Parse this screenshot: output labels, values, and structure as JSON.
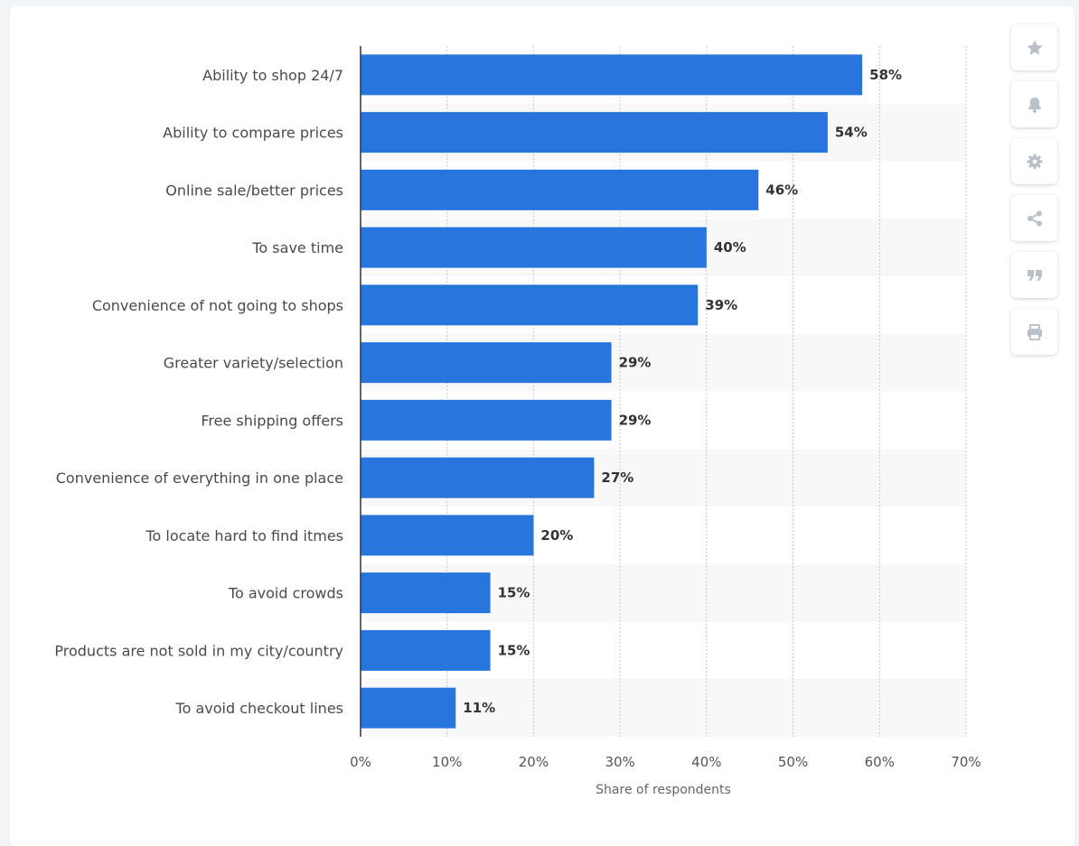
{
  "chart_data": {
    "type": "bar",
    "orientation": "horizontal",
    "categories": [
      "Ability to shop 24/7",
      "Ability to compare prices",
      "Online sale/better prices",
      "To save time",
      "Convenience of not going to shops",
      "Greater variety/selection",
      "Free shipping offers",
      "Convenience of everything in one place",
      "To locate hard to find itmes",
      "To avoid crowds",
      "Products are not sold in my city/country",
      "To avoid checkout lines"
    ],
    "values": [
      58,
      54,
      46,
      40,
      39,
      29,
      29,
      27,
      20,
      15,
      15,
      11
    ],
    "value_labels": [
      "58%",
      "54%",
      "46%",
      "40%",
      "39%",
      "29%",
      "29%",
      "27%",
      "20%",
      "15%",
      "15%",
      "11%"
    ],
    "xlabel": "Share of respondents",
    "ylabel": "",
    "xlim": [
      0,
      70
    ],
    "x_ticks": [
      "0%",
      "10%",
      "20%",
      "30%",
      "40%",
      "50%",
      "60%",
      "70%"
    ],
    "grid": true,
    "bar_color": "#2876dd",
    "stripe_color": "#f8f8f8"
  },
  "toolbar": [
    {
      "name": "favorite",
      "icon": "star-icon"
    },
    {
      "name": "notification",
      "icon": "bell-icon"
    },
    {
      "name": "settings",
      "icon": "gear-icon"
    },
    {
      "name": "share",
      "icon": "share-icon"
    },
    {
      "name": "cite",
      "icon": "quote-icon"
    },
    {
      "name": "print",
      "icon": "printer-icon"
    }
  ]
}
